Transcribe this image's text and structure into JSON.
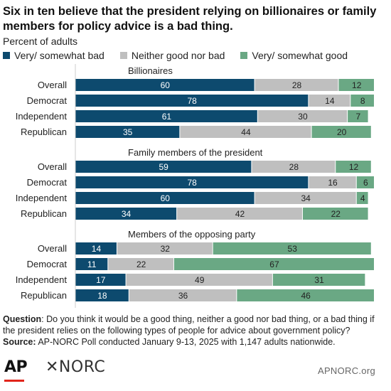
{
  "title": "Six in ten believe that the president relying on billionaires or family members for policy advice is a bad thing.",
  "subtitle": "Percent of adults",
  "legend": [
    {
      "label": "Very/ somewhat bad",
      "color": "#0d4a6e"
    },
    {
      "label": "Neither good nor bad",
      "color": "#bfbfbf"
    },
    {
      "label": "Very/ somewhat good",
      "color": "#6aa884"
    }
  ],
  "chart_data": {
    "type": "bar",
    "orientation": "horizontal",
    "stacked": true,
    "xlim": [
      0,
      100
    ],
    "x_ticks": [
      "0",
      "25",
      "50",
      "75",
      "100"
    ],
    "x_unit": "%",
    "series_names": [
      "Very/ somewhat bad",
      "Neither good nor bad",
      "Very/ somewhat good"
    ],
    "groups": [
      {
        "title": "Billionaires",
        "rows": [
          {
            "label": "Overall",
            "values": [
              60,
              28,
              12
            ]
          },
          {
            "label": "Democrat",
            "values": [
              78,
              14,
              8
            ]
          },
          {
            "label": "Independent",
            "values": [
              61,
              30,
              7
            ]
          },
          {
            "label": "Republican",
            "values": [
              35,
              44,
              20
            ]
          }
        ]
      },
      {
        "title": "Family members of the president",
        "rows": [
          {
            "label": "Overall",
            "values": [
              59,
              28,
              12
            ]
          },
          {
            "label": "Democrat",
            "values": [
              78,
              16,
              6
            ]
          },
          {
            "label": "Independent",
            "values": [
              60,
              34,
              4
            ]
          },
          {
            "label": "Republican",
            "values": [
              34,
              42,
              22
            ]
          }
        ]
      },
      {
        "title": "Members of the opposing party",
        "rows": [
          {
            "label": "Overall",
            "values": [
              14,
              32,
              53
            ]
          },
          {
            "label": "Democrat",
            "values": [
              11,
              22,
              67
            ]
          },
          {
            "label": "Independent",
            "values": [
              17,
              49,
              31
            ]
          },
          {
            "label": "Republican",
            "values": [
              18,
              36,
              46
            ]
          }
        ]
      }
    ]
  },
  "footnote": {
    "question_label": "Question",
    "question_text": ": Do you think it would be a good thing, neither a good nor bad thing, or a bad thing if the president relies on the following types of people for advice about government policy?",
    "source_label": "Source:",
    "source_text": " AP-NORC Poll conducted January 9-13, 2025 with 1,147 adults nationwide."
  },
  "footer": {
    "ap_logo": "AP",
    "norc_logo": "✕NORC",
    "site": "APNORC.org"
  }
}
